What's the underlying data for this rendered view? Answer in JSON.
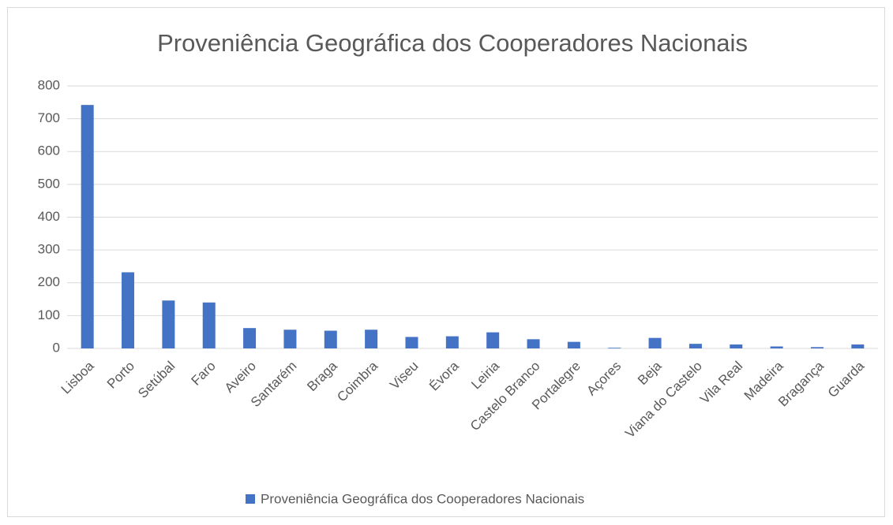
{
  "chart_data": {
    "type": "bar",
    "title": "Proveniência Geográfica dos Cooperadores Nacionais",
    "categories": [
      "Lisboa",
      "Porto",
      "Setúbal",
      "Faro",
      "Aveiro",
      "Santarém",
      "Braga",
      "Coimbra",
      "Viseu",
      "Évora",
      "Leiria",
      "Castelo Branco",
      "Portalegre",
      "Açores",
      "Beja",
      "Viana do Castelo",
      "Vila Real",
      "Madeira",
      "Bragança",
      "Guarda"
    ],
    "series": [
      {
        "name": "Proveniência Geográfica dos Cooperadores Nacionais",
        "color": "#4472c4",
        "values": [
          742,
          232,
          146,
          140,
          62,
          57,
          54,
          57,
          35,
          37,
          49,
          28,
          20,
          2,
          32,
          14,
          12,
          6,
          4,
          12
        ]
      }
    ],
    "ylim": [
      0,
      800
    ],
    "yticks": [
      0,
      100,
      200,
      300,
      400,
      500,
      600,
      700,
      800
    ],
    "grid": true,
    "legend": "bottom"
  }
}
